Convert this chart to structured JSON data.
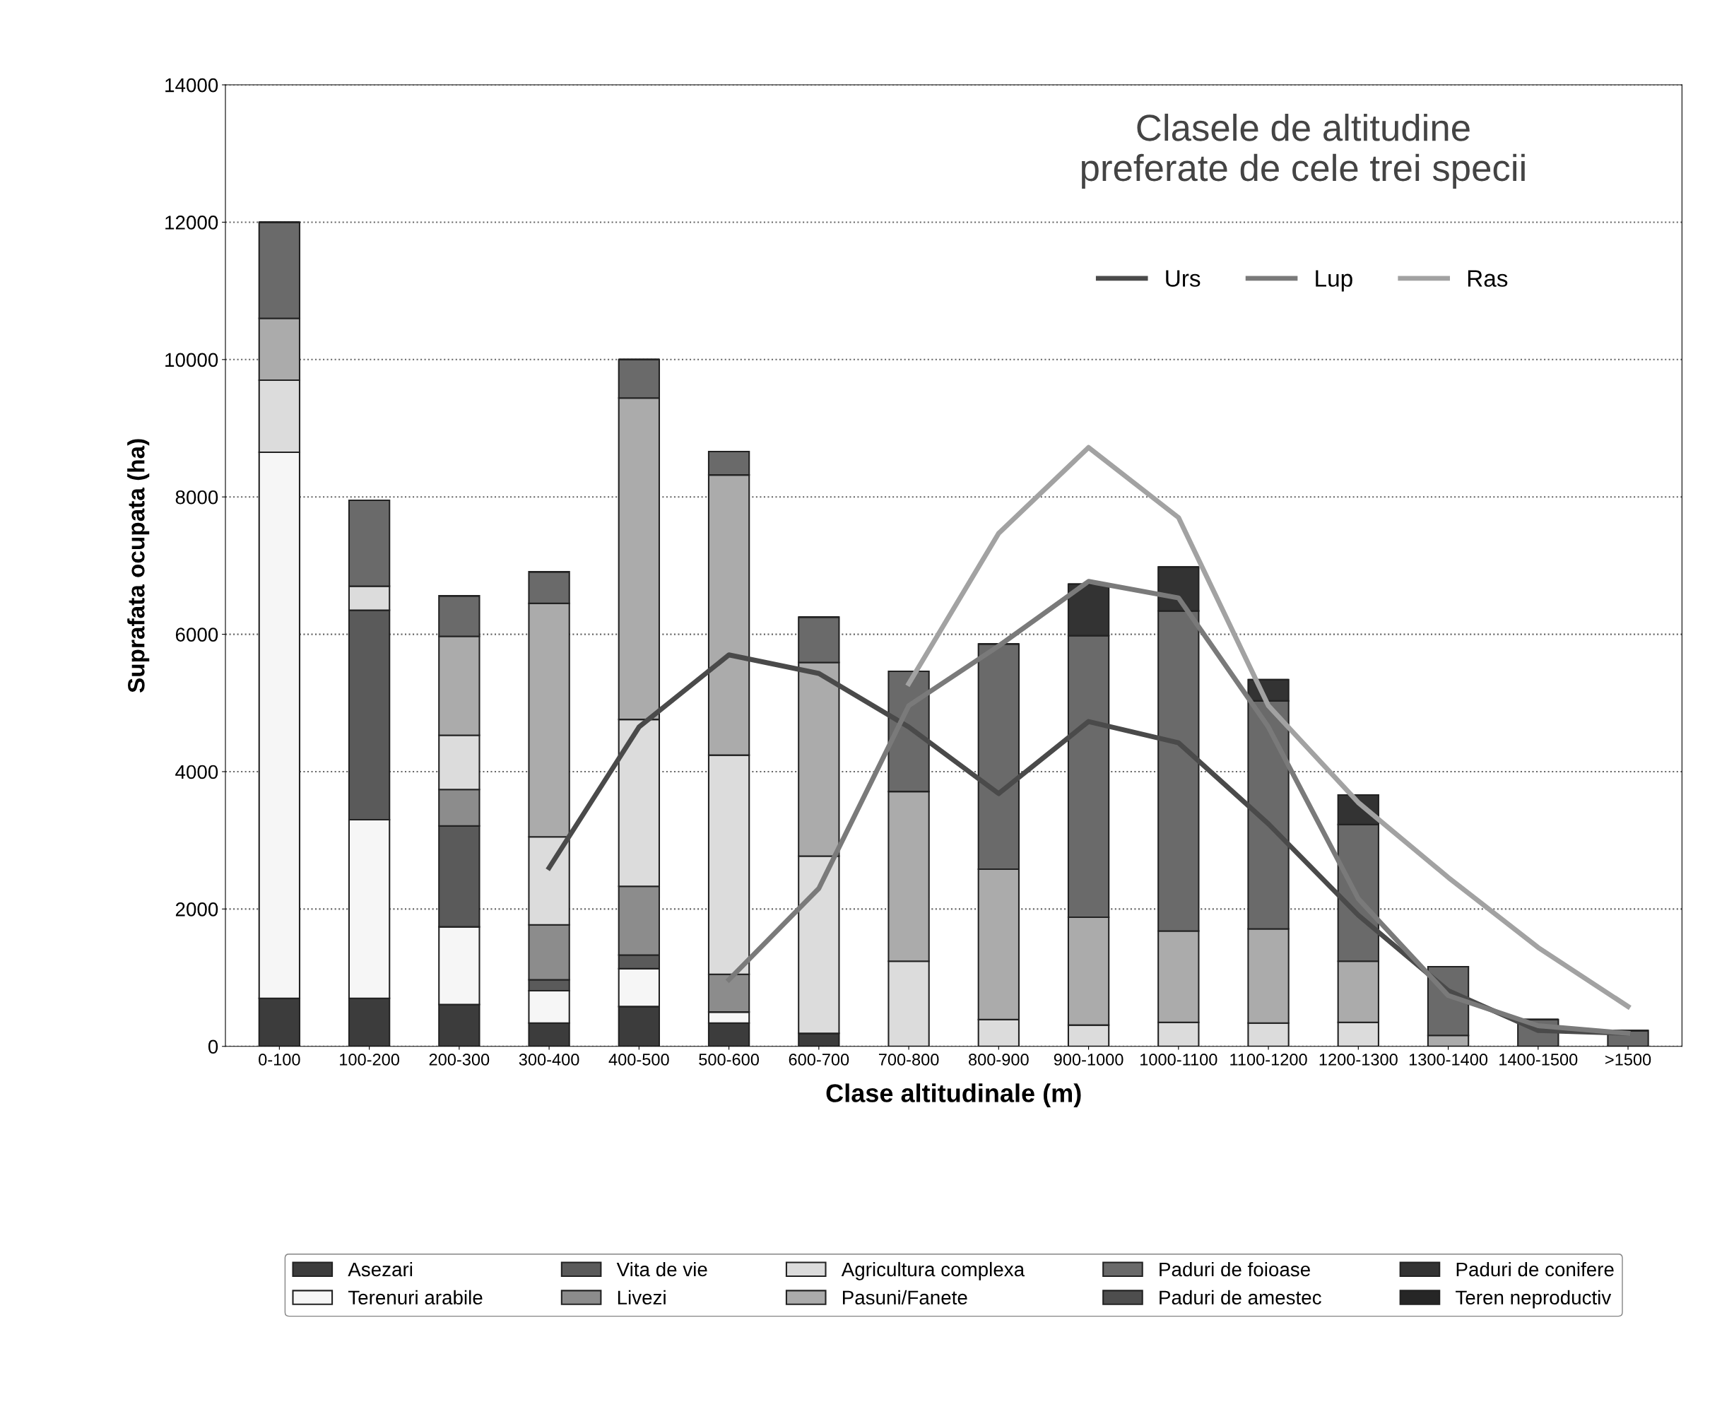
{
  "chart_data": {
    "type": "bar",
    "title": "Clasele de altitudine\npreferate de cele trei specii",
    "xlabel": "Clase altitudinale (m)",
    "ylabel": "Suprafata ocupata (ha)",
    "categories": [
      "0-100",
      "100-200",
      "200-300",
      "300-400",
      "400-500",
      "500-600",
      "600-700",
      "700-800",
      "800-900",
      "900-1000",
      "1000-1100",
      "1100-1200",
      "1200-1300",
      "1300-1400",
      "1400-1500",
      ">1500"
    ],
    "stacked": true,
    "series": [
      {
        "name": "Asezari",
        "color": "#3c3c3c",
        "values": [
          700,
          700,
          610,
          340,
          580,
          340,
          190,
          0,
          0,
          0,
          0,
          0,
          0,
          0,
          0,
          0
        ]
      },
      {
        "name": "Terenuri arabile",
        "color": "#f6f6f6",
        "values": [
          7950,
          2600,
          1130,
          470,
          550,
          160,
          0,
          0,
          0,
          0,
          0,
          0,
          0,
          0,
          0,
          0
        ]
      },
      {
        "name": "Vita de vie",
        "color": "#5a5a5a",
        "values": [
          0,
          3050,
          1470,
          160,
          200,
          0,
          0,
          0,
          0,
          0,
          0,
          0,
          0,
          0,
          0,
          0
        ]
      },
      {
        "name": "Livezi",
        "color": "#8c8c8c",
        "values": [
          0,
          0,
          530,
          800,
          1000,
          550,
          0,
          0,
          0,
          0,
          0,
          0,
          0,
          0,
          0,
          0
        ]
      },
      {
        "name": "Agricultura complexa",
        "color": "#dcdcdc",
        "values": [
          1050,
          350,
          790,
          1280,
          2430,
          3190,
          2580,
          1240,
          390,
          310,
          350,
          340,
          350,
          0,
          0,
          0
        ]
      },
      {
        "name": "Pasuni/Fanete",
        "color": "#ababab",
        "values": [
          900,
          0,
          1440,
          3400,
          4680,
          4080,
          2820,
          2470,
          2190,
          1570,
          1330,
          1370,
          890,
          160,
          0,
          0
        ]
      },
      {
        "name": "Paduri de foioase",
        "color": "#6a6a6a",
        "values": [
          1400,
          1250,
          590,
          460,
          560,
          340,
          660,
          1750,
          3280,
          4100,
          4660,
          3320,
          1990,
          1000,
          390,
          230
        ]
      },
      {
        "name": "Paduri de amestec",
        "color": "#4e4e4e",
        "values": [
          0,
          0,
          0,
          0,
          0,
          0,
          0,
          0,
          0,
          0,
          0,
          0,
          0,
          0,
          0,
          0
        ]
      },
      {
        "name": "Paduri de conifere",
        "color": "#333333",
        "values": [
          0,
          0,
          0,
          0,
          0,
          0,
          0,
          0,
          0,
          750,
          640,
          310,
          430,
          0,
          0,
          0
        ]
      },
      {
        "name": "Teren neproductiv",
        "color": "#262626",
        "values": [
          0,
          0,
          0,
          0,
          0,
          0,
          0,
          0,
          0,
          0,
          0,
          0,
          0,
          0,
          0,
          0
        ]
      },
      {
        "name": "Urs",
        "type": "line",
        "color": "#4a4a4a",
        "values": [
          null,
          null,
          null,
          2600,
          4650,
          5700,
          5430,
          4650,
          3680,
          4730,
          4420,
          3240,
          1910,
          810,
          230,
          190
        ]
      },
      {
        "name": "Lup",
        "type": "line",
        "color": "#7a7a7a",
        "values": [
          null,
          null,
          null,
          null,
          null,
          970,
          2300,
          4960,
          5830,
          6770,
          6530,
          4650,
          2150,
          740,
          300,
          190
        ]
      },
      {
        "name": "Ras",
        "type": "line",
        "color": "#a2a2a2",
        "values": [
          null,
          null,
          null,
          null,
          null,
          null,
          null,
          5280,
          7470,
          8720,
          7700,
          4960,
          3550,
          2460,
          1440,
          580
        ]
      }
    ],
    "ylim": [
      0,
      14000
    ],
    "yticks": [
      0,
      2000,
      4000,
      6000,
      8000,
      10000,
      12000,
      14000
    ],
    "grid": "y",
    "legend": "bottom"
  }
}
